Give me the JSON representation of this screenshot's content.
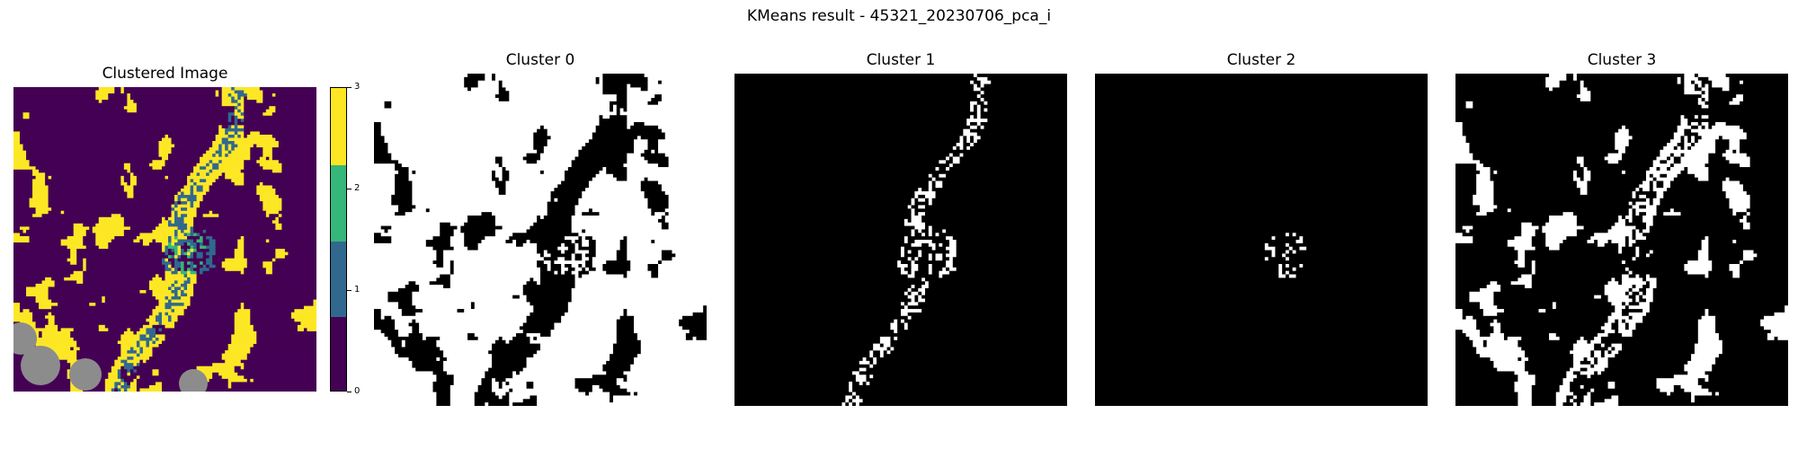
{
  "figure": {
    "suptitle": "KMeans result - 45321_20230706_pca_i"
  },
  "chart_data": {
    "type": "heatmap",
    "title": "KMeans result - 45321_20230706_pca_i",
    "panels": [
      {
        "title": "Clustered Image",
        "kind": "categorical-map",
        "classes": [
          0,
          1,
          2,
          3
        ],
        "nodata_color": "#8c8c8c"
      },
      {
        "title": "Cluster 0",
        "kind": "binary-mask",
        "cluster": 0,
        "approx_share": 0.7
      },
      {
        "title": "Cluster 1",
        "kind": "binary-mask",
        "cluster": 1,
        "approx_share": 0.04
      },
      {
        "title": "Cluster 2",
        "kind": "binary-mask",
        "cluster": 2,
        "approx_share": 0.01
      },
      {
        "title": "Cluster 3",
        "kind": "binary-mask",
        "cluster": 3,
        "approx_share": 0.25
      }
    ],
    "colorbar": {
      "range": [
        0,
        3
      ],
      "ticks": [
        "0",
        "1",
        "2",
        "3"
      ],
      "colors": [
        "#440154",
        "#31688e",
        "#35b779",
        "#fde725"
      ]
    }
  }
}
